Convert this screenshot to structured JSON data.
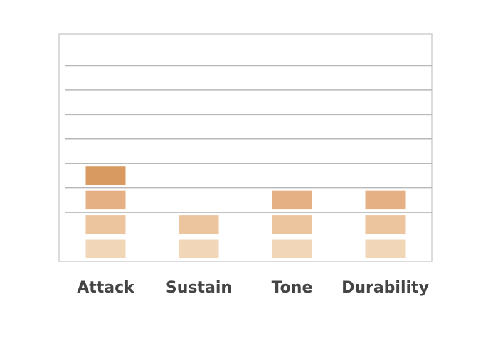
{
  "chart_data": {
    "type": "segmented-bar",
    "categories": [
      "Attack",
      "Sustain",
      "Tone",
      "Durability"
    ],
    "values": [
      4,
      2,
      3,
      3
    ],
    "segment_colors": [
      "#f1d6b8",
      "#ecc59f",
      "#e5b083",
      "#d99a62"
    ],
    "ylim": [
      0,
      9
    ],
    "yticks": [
      2,
      3,
      4,
      5,
      6,
      7,
      8
    ],
    "grid": true
  }
}
